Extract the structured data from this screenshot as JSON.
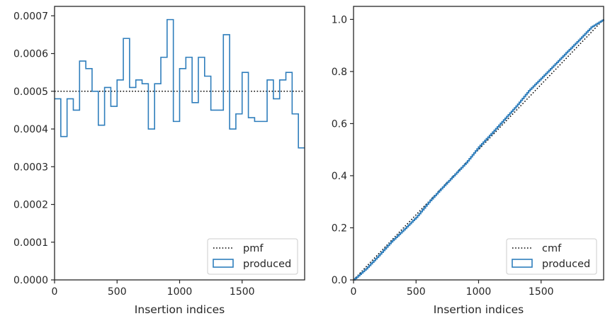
{
  "colors": {
    "produced": "#2f7ebc",
    "reference": "#000000",
    "axes": "#262626",
    "legend_border": "#cccccc"
  },
  "chart_data": [
    {
      "type": "line",
      "panel": "left",
      "xlabel": "Insertion indices",
      "ylabel": "",
      "xlim": [
        0,
        2000
      ],
      "ylim": [
        0,
        0.000725
      ],
      "x_ticks": [
        0,
        500,
        1000,
        1500
      ],
      "x_tick_labels": [
        "0",
        "500",
        "1000",
        "1500"
      ],
      "y_ticks": [
        0,
        0.0001,
        0.0002,
        0.0003,
        0.0004,
        0.0005,
        0.0006,
        0.0007
      ],
      "y_tick_labels": [
        "0.0000",
        "0.0001",
        "0.0002",
        "0.0003",
        "0.0004",
        "0.0005",
        "0.0006",
        "0.0007"
      ],
      "grid": false,
      "legend_position": "lower-right",
      "reference_line": {
        "name": "pmf",
        "style": "dotted",
        "value": 0.0005
      },
      "histogram": {
        "name": "produced",
        "style": "step",
        "bin_edges": [
          0,
          50,
          100,
          150,
          200,
          250,
          300,
          350,
          400,
          450,
          500,
          550,
          600,
          650,
          700,
          750,
          800,
          850,
          900,
          950,
          1000,
          1050,
          1100,
          1150,
          1200,
          1250,
          1300,
          1350,
          1400,
          1450,
          1500,
          1550,
          1600,
          1650,
          1700,
          1750,
          1800,
          1850,
          1900,
          1950,
          2000
        ],
        "values": [
          0.00048,
          0.00038,
          0.00048,
          0.00045,
          0.00058,
          0.00056,
          0.0005,
          0.00041,
          0.00051,
          0.00046,
          0.00053,
          0.00064,
          0.00051,
          0.00053,
          0.00052,
          0.0004,
          0.00052,
          0.00059,
          0.00069,
          0.00042,
          0.00056,
          0.00059,
          0.00047,
          0.00059,
          0.00054,
          0.00045,
          0.00045,
          0.00065,
          0.0004,
          0.00044,
          0.00055,
          0.00043,
          0.00042,
          0.00042,
          0.00053,
          0.00048,
          0.00053,
          0.00055,
          0.00044,
          0.00035
        ]
      }
    },
    {
      "type": "line",
      "panel": "right",
      "xlabel": "Insertion indices",
      "ylabel": "",
      "xlim": [
        0,
        2000
      ],
      "ylim": [
        0,
        1.05
      ],
      "x_ticks": [
        0,
        500,
        1000,
        1500
      ],
      "x_tick_labels": [
        "0",
        "500",
        "1000",
        "1500"
      ],
      "y_ticks": [
        0,
        0.2,
        0.4,
        0.6,
        0.8,
        1.0
      ],
      "y_tick_labels": [
        "0.0",
        "0.2",
        "0.4",
        "0.6",
        "0.8",
        "1.0"
      ],
      "grid": false,
      "legend_position": "lower-right",
      "reference_line": {
        "name": "cmf",
        "style": "dotted",
        "points": [
          [
            0,
            0
          ],
          [
            2000,
            1.0
          ]
        ]
      },
      "cumulative": {
        "name": "produced",
        "style": "step",
        "x": [
          0,
          100,
          200,
          300,
          400,
          500,
          600,
          700,
          800,
          900,
          1000,
          1100,
          1200,
          1300,
          1400,
          1500,
          1600,
          1700,
          1800,
          1900,
          2000
        ],
        "y": [
          0,
          0.043,
          0.093,
          0.146,
          0.192,
          0.24,
          0.298,
          0.35,
          0.4,
          0.45,
          0.51,
          0.561,
          0.614,
          0.667,
          0.726,
          0.774,
          0.823,
          0.872,
          0.92,
          0.97,
          1.0
        ]
      }
    }
  ],
  "legends": {
    "left": {
      "line_label": "pmf",
      "patch_label": "produced"
    },
    "right": {
      "line_label": "cmf",
      "patch_label": "produced"
    }
  }
}
